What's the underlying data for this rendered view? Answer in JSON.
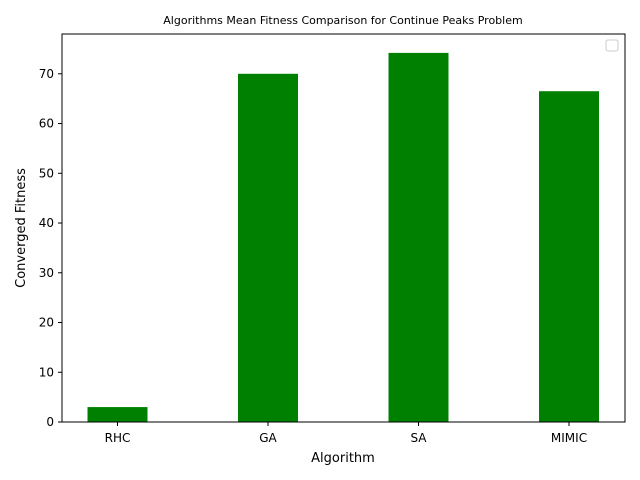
{
  "chart_data": {
    "type": "bar",
    "title": "Algorithms Mean Fitness Comparison for Continue Peaks Problem",
    "xlabel": "Algorithm",
    "ylabel": "Converged Fitness",
    "categories": [
      "RHC",
      "GA",
      "SA",
      "MIMIC"
    ],
    "values": [
      3,
      70,
      74.2,
      66.5
    ],
    "ylim": [
      0,
      78
    ],
    "yticks": [
      0,
      10,
      20,
      30,
      40,
      50,
      60,
      70
    ],
    "bar_color": "#008000",
    "grid": false,
    "legend": {
      "position": "top-right",
      "entries": []
    }
  }
}
